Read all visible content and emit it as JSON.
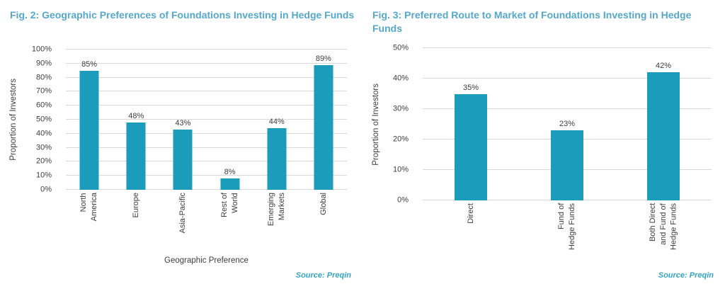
{
  "colors": {
    "bar": "#1B9CBA",
    "heading": "#55A8CC",
    "source": "#35A4C5",
    "text": "#3D3D3D",
    "grid": "#D9D9D9"
  },
  "chart_data": [
    {
      "type": "bar",
      "title": "Fig. 2: Geographic Preferences of Foundations Investing in Hedge Funds",
      "categories": [
        "North\nAmerica",
        "Europe",
        "Asia-Pacific",
        "Rest of\nWorld",
        "Emerging\nMarkets",
        "Global"
      ],
      "values": [
        85,
        48,
        43,
        8,
        44,
        89
      ],
      "unit": "%",
      "xlabel": "Geographic Preference",
      "ylabel": "Proportion of Investors",
      "ylim": [
        0,
        100
      ],
      "ytick_step": 10,
      "grid": true,
      "legend": false,
      "source": "Source: Preqin"
    },
    {
      "type": "bar",
      "title": "Fig. 3: Preferred Route to Market of Foundations Investing in Hedge Funds",
      "categories": [
        "Direct",
        "Fund of\nHedge Funds",
        "Both Direct\nand Fund of\nHedge Funds"
      ],
      "values": [
        35,
        23,
        42
      ],
      "unit": "%",
      "xlabel": "",
      "ylabel": "Proportion of Investors",
      "ylim": [
        0,
        50
      ],
      "ytick_step": 10,
      "grid": true,
      "legend": false,
      "source": "Source: Preqin"
    }
  ]
}
